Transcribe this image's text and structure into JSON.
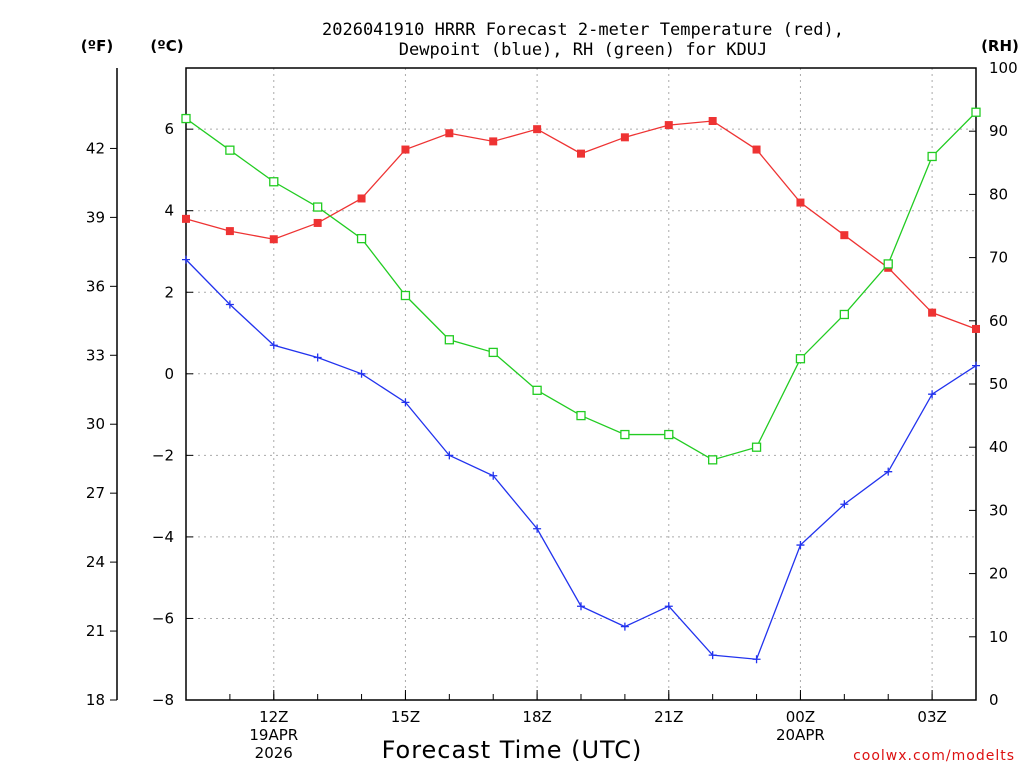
{
  "chart_data": {
    "type": "line",
    "title_line1": "2026041910 HRRR Forecast 2-meter Temperature (red),",
    "title_line2": "Dewpoint (blue), RH (green) for KDUJ",
    "xlabel": "Forecast Time (UTC)",
    "credit": "coolwx.com/modelts",
    "y_left_c_label": "(ºC)",
    "y_left_f_label": "(ºF)",
    "y_right_label": "(RH)",
    "ylim_c": [
      -8,
      7.5
    ],
    "ylim_rh": [
      0,
      100
    ],
    "ylim_f": [
      18,
      45.5
    ],
    "x_hours": [
      10,
      11,
      12,
      13,
      14,
      15,
      16,
      17,
      18,
      19,
      20,
      21,
      22,
      23,
      24,
      25,
      26,
      27,
      28
    ],
    "xlim_hours": [
      10,
      28
    ],
    "x_ticks": [
      {
        "hour": 12,
        "label": "12Z",
        "sub1": "19APR",
        "sub2": "2026"
      },
      {
        "hour": 15,
        "label": "15Z",
        "sub1": "",
        "sub2": ""
      },
      {
        "hour": 18,
        "label": "18Z",
        "sub1": "",
        "sub2": ""
      },
      {
        "hour": 21,
        "label": "21Z",
        "sub1": "",
        "sub2": ""
      },
      {
        "hour": 24,
        "label": "00Z",
        "sub1": "20APR",
        "sub2": ""
      },
      {
        "hour": 27,
        "label": "03Z",
        "sub1": "",
        "sub2": ""
      }
    ],
    "yticks_c": [
      "6",
      "4",
      "2",
      "0",
      "−2",
      "−4",
      "−6",
      "−8"
    ],
    "yticks_f": [
      "42",
      "39",
      "36",
      "33",
      "30",
      "27",
      "24",
      "21",
      "18"
    ],
    "yticks_rh": [
      "100",
      "90",
      "80",
      "70",
      "60",
      "50",
      "40",
      "30",
      "20",
      "10",
      "0"
    ],
    "series": [
      {
        "name": "Temperature",
        "color": "#ee3333",
        "marker": "square-filled",
        "values": [
          3.8,
          3.5,
          3.3,
          3.7,
          4.3,
          5.5,
          5.9,
          5.7,
          6.0,
          5.4,
          5.8,
          6.1,
          6.2,
          5.5,
          4.2,
          3.4,
          2.6,
          1.5,
          1.1
        ]
      },
      {
        "name": "Dewpoint",
        "color": "#2233ee",
        "marker": "plus",
        "values": [
          2.8,
          1.7,
          0.7,
          0.4,
          0.0,
          -0.7,
          -2.0,
          -2.5,
          -3.8,
          -5.7,
          -6.2,
          -5.7,
          -6.9,
          -7.0,
          -4.2,
          -3.2,
          -2.4,
          -0.5,
          0.2
        ]
      },
      {
        "name": "RH",
        "color": "#22cc22",
        "marker": "square-open",
        "values": [
          92,
          87,
          82,
          78,
          73,
          64,
          57,
          55,
          49,
          45,
          42,
          42,
          38,
          40,
          54,
          61,
          69,
          86,
          93
        ]
      }
    ]
  }
}
